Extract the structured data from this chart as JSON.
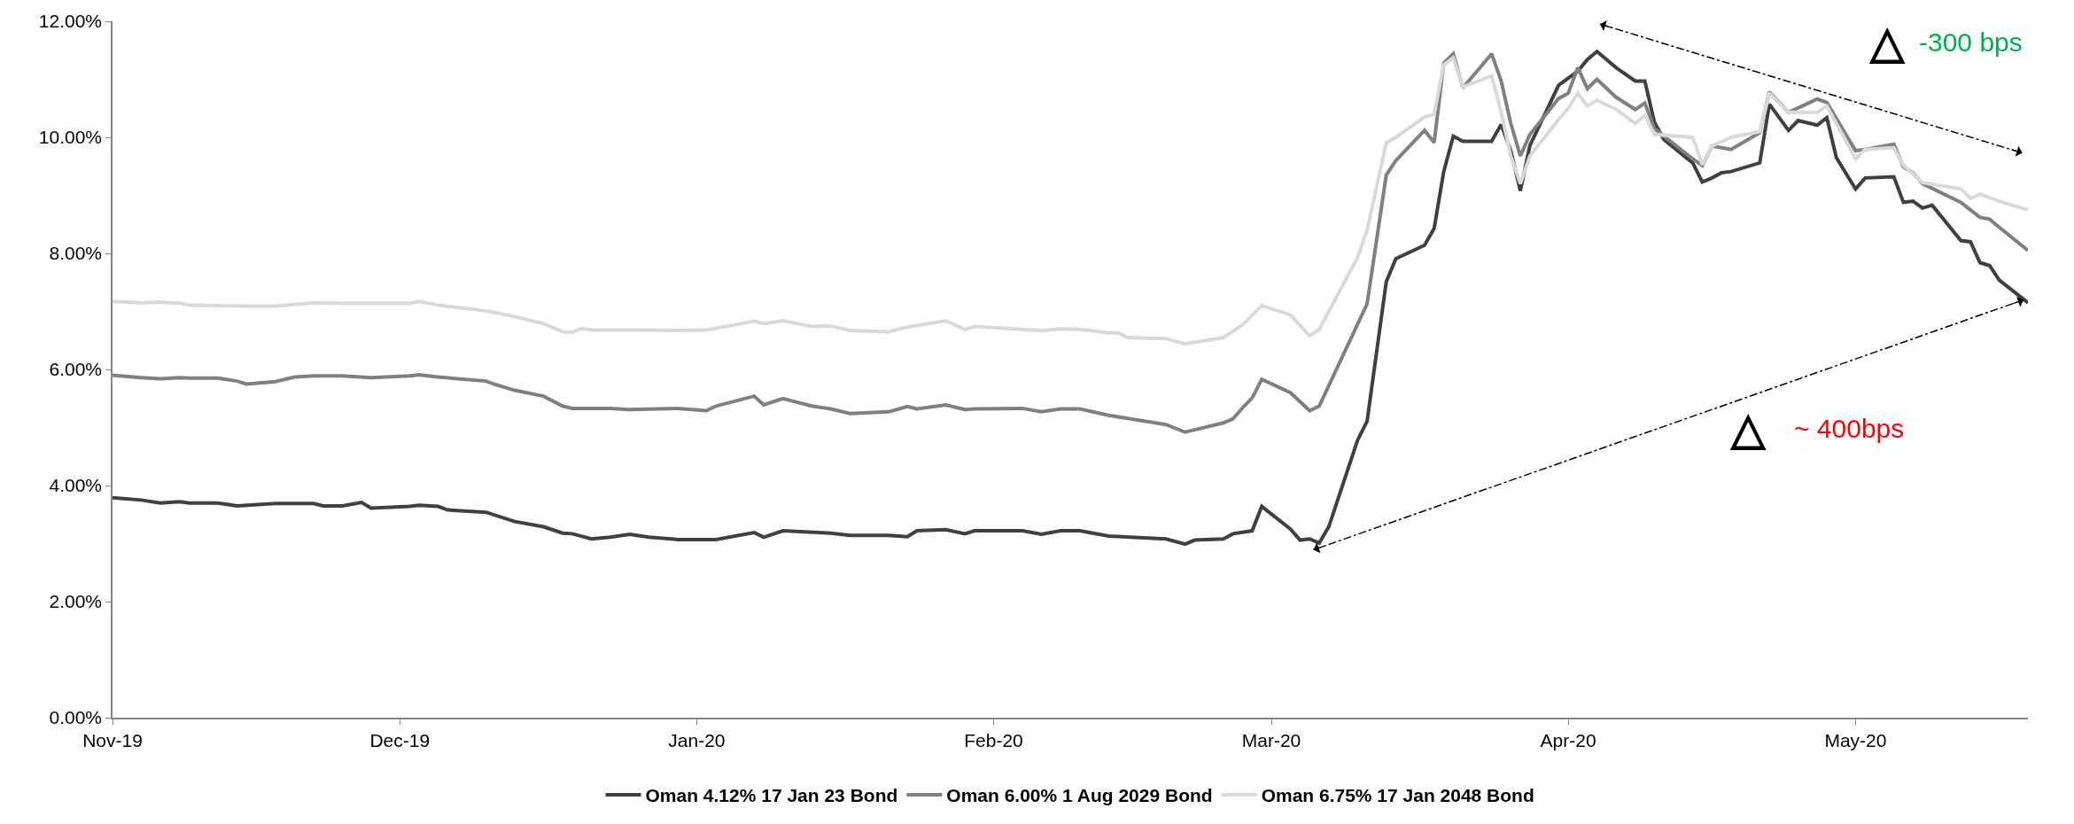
{
  "chart_data": {
    "type": "line",
    "xlim": [
      "2019-11-01",
      "2020-05-19"
    ],
    "xticks": [
      {
        "value": "2019-11-01",
        "label": "Nov-19"
      },
      {
        "value": "2019-12-01",
        "label": "Dec-19"
      },
      {
        "value": "2020-01-01",
        "label": "Jan-20"
      },
      {
        "value": "2020-02-01",
        "label": "Feb-20"
      },
      {
        "value": "2020-03-01",
        "label": "Mar-20"
      },
      {
        "value": "2020-04-01",
        "label": "Apr-20"
      },
      {
        "value": "2020-05-01",
        "label": "May-20"
      }
    ],
    "ylim": [
      0,
      12
    ],
    "yticks": [
      {
        "value": 0,
        "label": "0.00%"
      },
      {
        "value": 2,
        "label": "2.00%"
      },
      {
        "value": 4,
        "label": "4.00%"
      },
      {
        "value": 6,
        "label": "6.00%"
      },
      {
        "value": 8,
        "label": "8.00%"
      },
      {
        "value": 10,
        "label": "10.00%"
      },
      {
        "value": 12,
        "label": "12.00%"
      }
    ],
    "legend": "bottom",
    "marker": "none",
    "line_style": "solid",
    "annotations": [
      "△",
      "-300 bps",
      "△",
      "~ 400bps"
    ],
    "series": [
      {
        "name": "Oman 4.12% 17 Jan 23 Bond",
        "color": "#404040",
        "x": [
          "2019-11-01",
          "2019-11-04",
          "2019-11-06",
          "2019-11-08",
          "2019-11-09",
          "2019-11-12",
          "2019-11-14",
          "2019-11-18",
          "2019-11-22",
          "2019-11-23",
          "2019-11-25",
          "2019-11-27",
          "2019-11-28",
          "2019-12-02",
          "2019-12-03",
          "2019-12-05",
          "2019-12-06",
          "2019-12-10",
          "2019-12-13",
          "2019-12-16",
          "2019-12-18",
          "2019-12-19",
          "2019-12-21",
          "2019-12-23",
          "2019-12-25",
          "2019-12-27",
          "2019-12-30",
          "2020-01-03",
          "2020-01-07",
          "2020-01-08",
          "2020-01-10",
          "2020-01-15",
          "2020-01-17",
          "2020-01-21",
          "2020-01-23",
          "2020-01-24",
          "2020-01-27",
          "2020-01-29",
          "2020-01-30",
          "2020-02-04",
          "2020-02-06",
          "2020-02-08",
          "2020-02-10",
          "2020-02-13",
          "2020-02-19",
          "2020-02-21",
          "2020-02-22",
          "2020-02-25",
          "2020-02-26",
          "2020-02-28",
          "2020-02-29",
          "2020-03-03",
          "2020-03-04",
          "2020-03-05",
          "2020-03-06",
          "2020-03-07",
          "2020-03-10",
          "2020-03-11",
          "2020-03-13",
          "2020-03-14",
          "2020-03-17",
          "2020-03-18",
          "2020-03-19",
          "2020-03-20",
          "2020-03-21",
          "2020-03-24",
          "2020-03-25",
          "2020-03-26",
          "2020-03-27",
          "2020-03-28",
          "2020-03-31",
          "2020-04-02",
          "2020-04-03",
          "2020-04-04",
          "2020-04-06",
          "2020-04-08",
          "2020-04-09",
          "2020-04-10",
          "2020-04-11",
          "2020-04-14",
          "2020-04-15",
          "2020-04-16",
          "2020-04-17",
          "2020-04-18",
          "2020-04-21",
          "2020-04-22",
          "2020-04-24",
          "2020-04-25",
          "2020-04-27",
          "2020-04-28",
          "2020-04-29",
          "2020-05-01",
          "2020-05-02",
          "2020-05-05",
          "2020-05-06",
          "2020-05-07",
          "2020-05-08",
          "2020-05-09",
          "2020-05-12",
          "2020-05-13",
          "2020-05-14",
          "2020-05-15",
          "2020-05-16",
          "2020-05-19"
        ],
        "values": [
          3.79,
          3.75,
          3.7,
          3.72,
          3.7,
          3.7,
          3.65,
          3.69,
          3.69,
          3.65,
          3.65,
          3.71,
          3.61,
          3.64,
          3.66,
          3.64,
          3.58,
          3.54,
          3.38,
          3.29,
          3.18,
          3.17,
          3.08,
          3.11,
          3.16,
          3.11,
          3.07,
          3.07,
          3.19,
          3.11,
          3.22,
          3.18,
          3.14,
          3.14,
          3.12,
          3.22,
          3.24,
          3.17,
          3.22,
          3.22,
          3.16,
          3.22,
          3.22,
          3.13,
          3.08,
          2.99,
          3.06,
          3.08,
          3.17,
          3.22,
          3.64,
          3.25,
          3.06,
          3.08,
          3.01,
          3.29,
          4.78,
          5.11,
          7.51,
          7.91,
          8.14,
          8.43,
          9.41,
          10.02,
          9.93,
          9.93,
          10.22,
          9.77,
          9.08,
          9.86,
          10.9,
          11.14,
          11.34,
          11.48,
          11.2,
          10.97,
          10.97,
          10.26,
          9.96,
          9.56,
          9.23,
          9.3,
          9.39,
          9.41,
          9.56,
          10.57,
          10.12,
          10.29,
          10.21,
          10.34,
          9.65,
          9.11,
          9.3,
          9.32,
          8.88,
          8.9,
          8.78,
          8.83,
          8.22,
          8.2,
          7.84,
          7.79,
          7.54,
          7.15
        ]
      },
      {
        "name": "Oman 6.00% 1 Aug 2029 Bond",
        "color": "#808080",
        "x": [
          "2019-11-01",
          "2019-11-04",
          "2019-11-06",
          "2019-11-08",
          "2019-11-09",
          "2019-11-12",
          "2019-11-14",
          "2019-11-15",
          "2019-11-18",
          "2019-11-20",
          "2019-11-22",
          "2019-11-25",
          "2019-11-28",
          "2019-12-02",
          "2019-12-03",
          "2019-12-05",
          "2019-12-10",
          "2019-12-11",
          "2019-12-13",
          "2019-12-16",
          "2019-12-18",
          "2019-12-19",
          "2019-12-23",
          "2019-12-25",
          "2019-12-30",
          "2020-01-02",
          "2020-01-03",
          "2020-01-07",
          "2020-01-08",
          "2020-01-10",
          "2020-01-13",
          "2020-01-15",
          "2020-01-17",
          "2020-01-21",
          "2020-01-23",
          "2020-01-24",
          "2020-01-27",
          "2020-01-29",
          "2020-01-30",
          "2020-02-04",
          "2020-02-06",
          "2020-02-08",
          "2020-02-10",
          "2020-02-13",
          "2020-02-19",
          "2020-02-21",
          "2020-02-22",
          "2020-02-25",
          "2020-02-26",
          "2020-02-27",
          "2020-02-28",
          "2020-02-29",
          "2020-03-03",
          "2020-03-05",
          "2020-03-06",
          "2020-03-11",
          "2020-03-13",
          "2020-03-14",
          "2020-03-17",
          "2020-03-18",
          "2020-03-19",
          "2020-03-20",
          "2020-03-21",
          "2020-03-24",
          "2020-03-25",
          "2020-03-26",
          "2020-03-27",
          "2020-03-28",
          "2020-03-31",
          "2020-04-01",
          "2020-04-02",
          "2020-04-03",
          "2020-04-04",
          "2020-04-06",
          "2020-04-08",
          "2020-04-09",
          "2020-04-10",
          "2020-04-14",
          "2020-04-15",
          "2020-04-16",
          "2020-04-18",
          "2020-04-21",
          "2020-04-22",
          "2020-04-24",
          "2020-04-27",
          "2020-04-28",
          "2020-05-01",
          "2020-05-02",
          "2020-05-05",
          "2020-05-06",
          "2020-05-07",
          "2020-05-08",
          "2020-05-12",
          "2020-05-14",
          "2020-05-15",
          "2020-05-16",
          "2020-05-19"
        ],
        "values": [
          5.9,
          5.86,
          5.84,
          5.86,
          5.85,
          5.85,
          5.8,
          5.75,
          5.79,
          5.87,
          5.89,
          5.89,
          5.86,
          5.89,
          5.91,
          5.87,
          5.8,
          5.74,
          5.64,
          5.54,
          5.37,
          5.33,
          5.33,
          5.31,
          5.33,
          5.29,
          5.37,
          5.54,
          5.39,
          5.5,
          5.37,
          5.32,
          5.24,
          5.27,
          5.36,
          5.32,
          5.39,
          5.31,
          5.32,
          5.33,
          5.27,
          5.32,
          5.32,
          5.21,
          5.05,
          4.92,
          4.96,
          5.08,
          5.15,
          5.34,
          5.51,
          5.83,
          5.6,
          5.29,
          5.37,
          7.13,
          9.35,
          9.6,
          10.12,
          9.91,
          11.28,
          11.44,
          10.85,
          11.44,
          10.97,
          10.24,
          9.68,
          10.05,
          10.67,
          10.76,
          11.2,
          10.84,
          11.0,
          10.69,
          10.48,
          10.59,
          10.15,
          9.63,
          9.51,
          9.85,
          9.79,
          10.08,
          10.78,
          10.43,
          10.66,
          10.6,
          9.77,
          9.79,
          9.88,
          9.49,
          9.39,
          9.2,
          8.88,
          8.62,
          8.59,
          8.45,
          8.05
        ]
      },
      {
        "name": "Oman 6.75% 17 Jan 2048 Bond",
        "color": "#d9d9d9",
        "x": [
          "2019-11-01",
          "2019-11-04",
          "2019-11-06",
          "2019-11-08",
          "2019-11-09",
          "2019-11-12",
          "2019-11-15",
          "2019-11-18",
          "2019-11-22",
          "2019-11-25",
          "2019-11-28",
          "2019-12-02",
          "2019-12-03",
          "2019-12-05",
          "2019-12-10",
          "2019-12-13",
          "2019-12-16",
          "2019-12-18",
          "2019-12-19",
          "2019-12-20",
          "2019-12-21",
          "2019-12-27",
          "2019-12-30",
          "2020-01-02",
          "2020-01-07",
          "2020-01-08",
          "2020-01-10",
          "2020-01-13",
          "2020-01-15",
          "2020-01-17",
          "2020-01-21",
          "2020-01-23",
          "2020-01-27",
          "2020-01-29",
          "2020-01-30",
          "2020-02-06",
          "2020-02-08",
          "2020-02-10",
          "2020-02-13",
          "2020-02-14",
          "2020-02-15",
          "2020-02-19",
          "2020-02-21",
          "2020-02-22",
          "2020-02-25",
          "2020-02-26",
          "2020-02-27",
          "2020-02-29",
          "2020-03-03",
          "2020-03-05",
          "2020-03-06",
          "2020-03-10",
          "2020-03-11",
          "2020-03-13",
          "2020-03-14",
          "2020-03-17",
          "2020-03-18",
          "2020-03-19",
          "2020-03-20",
          "2020-03-21",
          "2020-03-24",
          "2020-03-25",
          "2020-03-26",
          "2020-03-27",
          "2020-03-28",
          "2020-03-31",
          "2020-04-01",
          "2020-04-02",
          "2020-04-03",
          "2020-04-04",
          "2020-04-06",
          "2020-04-08",
          "2020-04-09",
          "2020-04-10",
          "2020-04-14",
          "2020-04-15",
          "2020-04-16",
          "2020-04-18",
          "2020-04-21",
          "2020-04-22",
          "2020-04-24",
          "2020-04-27",
          "2020-04-28",
          "2020-05-01",
          "2020-05-02",
          "2020-05-05",
          "2020-05-06",
          "2020-05-08",
          "2020-05-12",
          "2020-05-13",
          "2020-05-14",
          "2020-05-16",
          "2020-05-19"
        ],
        "values": [
          7.17,
          7.15,
          7.16,
          7.14,
          7.11,
          7.1,
          7.09,
          7.09,
          7.15,
          7.14,
          7.14,
          7.14,
          7.17,
          7.11,
          7.01,
          6.91,
          6.79,
          6.65,
          6.64,
          6.71,
          6.68,
          6.68,
          6.67,
          6.68,
          6.83,
          6.79,
          6.84,
          6.74,
          6.75,
          6.67,
          6.65,
          6.73,
          6.84,
          6.69,
          6.74,
          6.67,
          6.7,
          6.69,
          6.63,
          6.63,
          6.55,
          6.53,
          6.44,
          6.47,
          6.55,
          6.66,
          6.77,
          7.1,
          6.94,
          6.58,
          6.69,
          7.93,
          8.4,
          9.91,
          10.0,
          10.35,
          10.4,
          11.25,
          11.37,
          10.87,
          11.06,
          10.43,
          9.68,
          9.2,
          9.68,
          10.31,
          10.5,
          10.76,
          10.54,
          10.64,
          10.48,
          10.24,
          10.38,
          10.05,
          10.0,
          9.53,
          9.85,
          10.0,
          10.1,
          10.76,
          10.43,
          10.43,
          10.54,
          9.63,
          9.79,
          9.82,
          9.52,
          9.22,
          9.11,
          8.95,
          9.02,
          8.9,
          8.75
        ]
      }
    ]
  }
}
